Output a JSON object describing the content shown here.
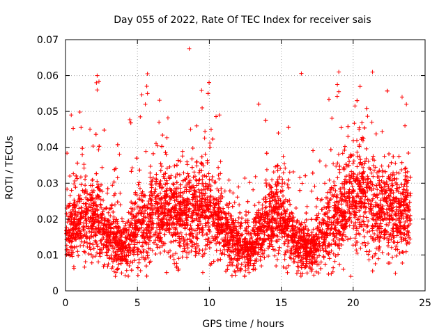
{
  "chart_data": {
    "type": "scatter",
    "title": "Day 055 of 2022, Rate Of TEC Index for receiver sais",
    "xlabel": "GPS time / hours",
    "ylabel": "ROTI / TECUs",
    "xlim": [
      0,
      25
    ],
    "ylim": [
      0,
      0.07
    ],
    "xticks": [
      0,
      5,
      10,
      15,
      20,
      25
    ],
    "xtick_labels": [
      "0",
      "5",
      "10",
      "15",
      "20",
      "25"
    ],
    "yticks": [
      0,
      0.01,
      0.02,
      0.03,
      0.04,
      0.05,
      0.06,
      0.07
    ],
    "ytick_labels": [
      "0",
      "0.01",
      "0.02",
      "0.03",
      "0.04",
      "0.05",
      "0.06",
      "0.07"
    ],
    "grid": true,
    "marker": "+",
    "series": [
      {
        "name": "ROTI",
        "color": "#ff0000",
        "points_per_hour": 240,
        "x_range": [
          0,
          24
        ],
        "baseline_trend": [
          [
            0.0,
            0.016
          ],
          [
            1.0,
            0.018
          ],
          [
            2.0,
            0.02
          ],
          [
            3.0,
            0.015
          ],
          [
            4.0,
            0.012
          ],
          [
            5.0,
            0.017
          ],
          [
            6.0,
            0.02
          ],
          [
            7.0,
            0.022
          ],
          [
            8.0,
            0.02
          ],
          [
            9.0,
            0.022
          ],
          [
            10.0,
            0.022
          ],
          [
            11.0,
            0.017
          ],
          [
            12.0,
            0.013
          ],
          [
            13.0,
            0.012
          ],
          [
            14.0,
            0.019
          ],
          [
            15.0,
            0.021
          ],
          [
            16.0,
            0.014
          ],
          [
            17.0,
            0.011
          ],
          [
            18.0,
            0.017
          ],
          [
            19.0,
            0.021
          ],
          [
            20.0,
            0.026
          ],
          [
            21.0,
            0.025
          ],
          [
            22.0,
            0.022
          ],
          [
            23.0,
            0.022
          ],
          [
            24.0,
            0.02
          ]
        ],
        "outliers": [
          [
            2.2,
            0.06
          ],
          [
            2.15,
            0.058
          ],
          [
            2.2,
            0.056
          ],
          [
            5.7,
            0.0605
          ],
          [
            5.65,
            0.057
          ],
          [
            5.7,
            0.055
          ],
          [
            8.6,
            0.0675
          ],
          [
            19.0,
            0.061
          ],
          [
            18.9,
            0.0575
          ],
          [
            19.0,
            0.0555
          ],
          [
            23.4,
            0.054
          ],
          [
            23.7,
            0.052
          ],
          [
            0.4,
            0.049
          ],
          [
            9.5,
            0.051
          ],
          [
            10.7,
            0.049
          ],
          [
            0.3,
            0.032
          ],
          [
            21.3,
            0.047
          ],
          [
            23.6,
            0.046
          ],
          [
            6.5,
            0.047
          ],
          [
            8.7,
            0.045
          ],
          [
            14.8,
            0.044
          ],
          [
            1.7,
            0.045
          ],
          [
            5.55,
            0.052
          ],
          [
            5.2,
            0.0485
          ],
          [
            12.1,
            0.009
          ],
          [
            16.8,
            0.005
          ],
          [
            17.6,
            0.005
          ],
          [
            3.9,
            0.005
          ]
        ]
      }
    ]
  }
}
